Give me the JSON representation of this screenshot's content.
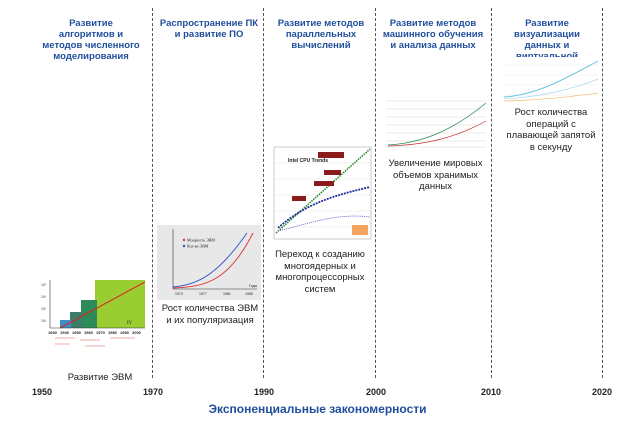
{
  "eras": [
    {
      "title": "Развитие алгоритмов и методов численного моделирования",
      "caption": "Развитие ЭВМ"
    },
    {
      "title": "Распространение ПК и развитие ПО",
      "caption": "Рост количества ЭВМ и их популяризация"
    },
    {
      "title": "Развитие методов параллельных вычислений",
      "caption": "Переход к созданию многоядерных и многопроцессорных систем"
    },
    {
      "title": "Развитие методов машинного обучения и анализа данных",
      "caption": "Увеличение мировых объемов хранимых данных"
    },
    {
      "title": "Развитие визуализации данных и виртуальной реальности",
      "caption": "Рост количества операций с плавающей запятой в секунду"
    }
  ],
  "timeline": {
    "years": [
      "1950",
      "1970",
      "1990",
      "2000",
      "2010",
      "2020"
    ],
    "title": "Экспоненциальные закономерности"
  },
  "chart_evm": {
    "years": [
      "1930",
      "1940",
      "1950",
      "1960",
      "1970",
      "1980",
      "1990",
      "2000"
    ],
    "generations": [
      "I",
      "II",
      "III",
      "IV"
    ]
  },
  "chart_pc": {
    "legend": [
      "Мощность ЭВМ",
      "Кол-во ЭВМ"
    ],
    "x_ticks": [
      "1973",
      "1977",
      "1981",
      "1985"
    ],
    "x_unit": "Годы"
  },
  "chart_cpu": {
    "title": "Intel CPU Trends"
  }
}
